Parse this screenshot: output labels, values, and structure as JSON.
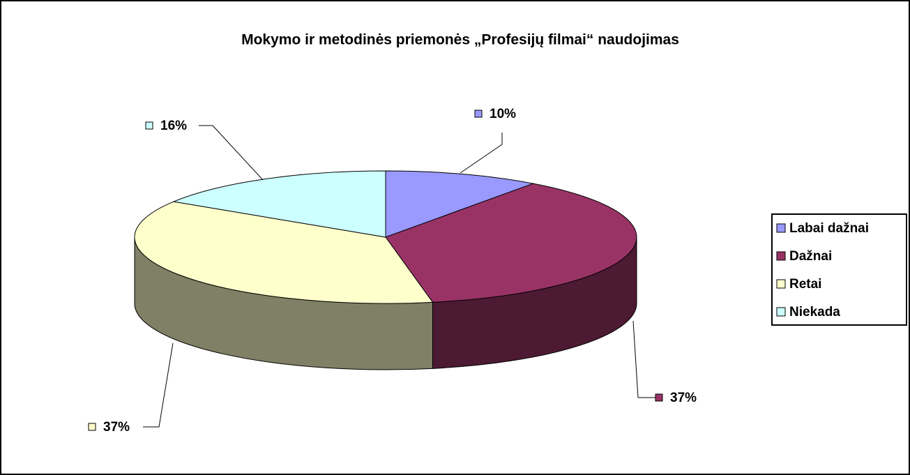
{
  "chart_data": {
    "type": "pie3d",
    "title": "Mokymo ir metodinės priemonės „Profesijų filmai“ naudojimas",
    "categories": [
      "Labai dažnai",
      "Dažnai",
      "Retai",
      "Niekada"
    ],
    "values": [
      10,
      37,
      37,
      16
    ],
    "value_labels": [
      "10%",
      "37%",
      "37%",
      "16%"
    ],
    "colors": [
      "#9999ff",
      "#993366",
      "#ffffcc",
      "#ccffff"
    ],
    "legend": "right"
  }
}
